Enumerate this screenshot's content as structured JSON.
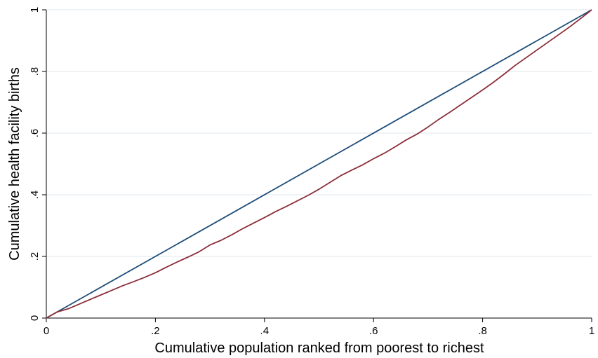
{
  "chart_data": {
    "type": "line",
    "title": "",
    "xlabel": "Cumulative population ranked from poorest to richest",
    "ylabel": "Cumulative health facility births",
    "xlim": [
      0,
      1
    ],
    "ylim": [
      0,
      1
    ],
    "x_ticks": [
      "0",
      ".2",
      ".4",
      ".6",
      ".8",
      "1"
    ],
    "y_ticks": [
      "0",
      ".2",
      ".4",
      ".6",
      ".8",
      "1"
    ],
    "x_tick_values": [
      0,
      0.2,
      0.4,
      0.6,
      0.8,
      1
    ],
    "y_tick_values": [
      0,
      0.2,
      0.4,
      0.6,
      0.8,
      1
    ],
    "grid": "horizontal",
    "legend": "none",
    "series": [
      {
        "color": "#1f4e79",
        "x": [
          0,
          1
        ],
        "y": [
          0,
          1
        ]
      },
      {
        "color": "#8b2e3a",
        "x": [
          0,
          0.02,
          0.04,
          0.06,
          0.08,
          0.1,
          0.12,
          0.14,
          0.16,
          0.18,
          0.2,
          0.22,
          0.24,
          0.26,
          0.28,
          0.3,
          0.32,
          0.34,
          0.36,
          0.38,
          0.4,
          0.42,
          0.44,
          0.46,
          0.48,
          0.5,
          0.52,
          0.54,
          0.56,
          0.58,
          0.6,
          0.62,
          0.64,
          0.66,
          0.68,
          0.7,
          0.72,
          0.74,
          0.76,
          0.78,
          0.8,
          0.82,
          0.84,
          0.86,
          0.88,
          0.9,
          0.92,
          0.94,
          0.96,
          0.98,
          1.0
        ],
        "y": [
          0,
          0.02,
          0.03,
          0.045,
          0.06,
          0.075,
          0.09,
          0.105,
          0.118,
          0.132,
          0.147,
          0.165,
          0.182,
          0.198,
          0.215,
          0.237,
          0.252,
          0.27,
          0.29,
          0.308,
          0.326,
          0.345,
          0.362,
          0.38,
          0.398,
          0.418,
          0.44,
          0.462,
          0.48,
          0.497,
          0.517,
          0.535,
          0.556,
          0.578,
          0.597,
          0.62,
          0.645,
          0.668,
          0.692,
          0.716,
          0.74,
          0.765,
          0.792,
          0.82,
          0.845,
          0.87,
          0.895,
          0.92,
          0.945,
          0.972,
          1.0
        ]
      }
    ]
  }
}
